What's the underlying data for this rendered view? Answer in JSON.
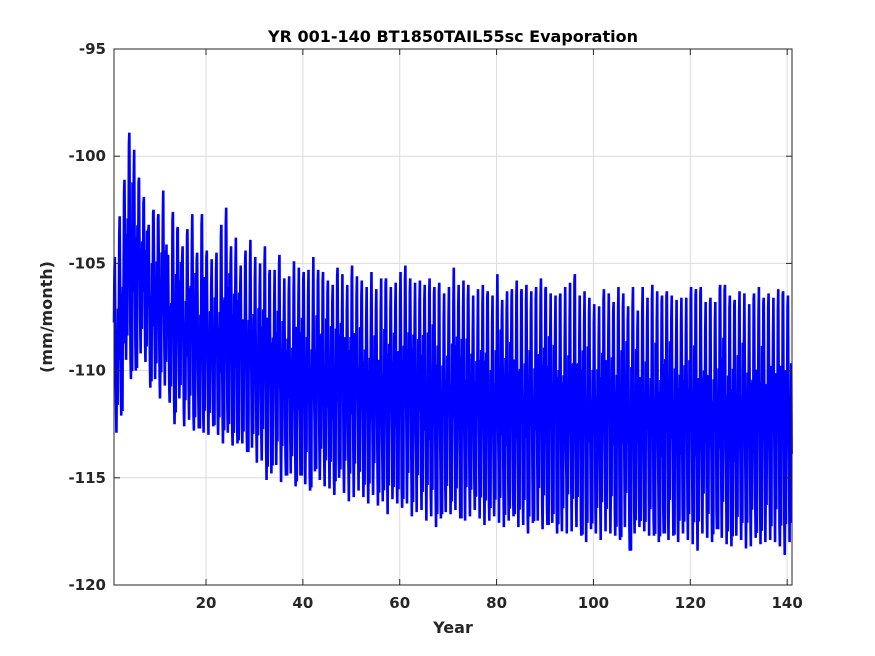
{
  "chart_data": {
    "type": "line",
    "title": "YR 001-140 BT1850TAIL55sc Evaporation",
    "xlabel": "Year",
    "ylabel": "(mm/month)",
    "xlim": [
      1,
      141
    ],
    "ylim": [
      -120,
      -95
    ],
    "xticks": [
      20,
      40,
      60,
      80,
      100,
      120,
      140
    ],
    "yticks": [
      -95,
      -100,
      -105,
      -110,
      -115,
      -120
    ],
    "grid": true,
    "series": [
      {
        "color": "#0000ff",
        "sampling": "monthly",
        "annual_max": [
          -104.7,
          -102.8,
          -101.1,
          -98.9,
          -99.7,
          -101.0,
          -101.9,
          -103.2,
          -102.5,
          -102.7,
          -101.6,
          -104.6,
          -102.6,
          -103.3,
          -104.2,
          -103.4,
          -102.7,
          -104.5,
          -102.7,
          -104.4,
          -104.8,
          -104.5,
          -103.2,
          -102.4,
          -104.2,
          -103.8,
          -105.1,
          -104.4,
          -103.9,
          -104.7,
          -105.0,
          -104.2,
          -105.3,
          -105.3,
          -104.6,
          -105.7,
          -105.6,
          -104.9,
          -105.2,
          -105.4,
          -105.3,
          -104.7,
          -105.3,
          -105.4,
          -105.8,
          -106.0,
          -105.2,
          -105.5,
          -106.0,
          -105.1,
          -105.6,
          -105.8,
          -106.1,
          -105.4,
          -106.2,
          -105.7,
          -105.7,
          -106.1,
          -105.9,
          -105.4,
          -105.1,
          -105.7,
          -105.9,
          -105.8,
          -106.0,
          -105.7,
          -106.1,
          -105.9,
          -106.4,
          -106.1,
          -105.2,
          -106.0,
          -105.8,
          -106.0,
          -106.5,
          -106.2,
          -106.0,
          -106.3,
          -106.5,
          -105.5,
          -106.7,
          -106.3,
          -106.2,
          -105.8,
          -106.2,
          -106.0,
          -106.3,
          -106.1,
          -105.7,
          -106.1,
          -106.4,
          -106.5,
          -106.4,
          -106.1,
          -105.9,
          -105.5,
          -106.5,
          -106.3,
          -106.6,
          -106.9,
          -107.0,
          -106.2,
          -106.4,
          -106.8,
          -106.1,
          -106.4,
          -107.0,
          -106.1,
          -107.2,
          -106.1,
          -106.6,
          -106.0,
          -106.3,
          -106.5,
          -106.3,
          -106.5,
          -106.7,
          -106.6,
          -106.6,
          -106.1,
          -106.2,
          -106.1,
          -106.8,
          -106.6,
          -106.8,
          -106.0,
          -106.0,
          -106.5,
          -106.7,
          -106.3,
          -106.4,
          -106.9,
          -106.4,
          -106.1,
          -106.6,
          -106.4,
          -106.6,
          -106.2,
          -106.3,
          -106.5
        ],
        "annual_min": [
          -112.9,
          -112.1,
          -109.5,
          -110.4,
          -110.0,
          -109.2,
          -109.6,
          -110.8,
          -110.4,
          -111.3,
          -110.7,
          -111.5,
          -112.5,
          -111.3,
          -112.6,
          -112.3,
          -112.8,
          -112.7,
          -112.9,
          -113.0,
          -112.6,
          -113.0,
          -113.4,
          -112.9,
          -113.5,
          -113.4,
          -113.4,
          -113.8,
          -113.6,
          -114.3,
          -114.2,
          -115.1,
          -114.8,
          -114.4,
          -115.2,
          -114.9,
          -114.8,
          -115.4,
          -114.9,
          -115.3,
          -115.6,
          -114.7,
          -115.1,
          -115.4,
          -115.5,
          -115.8,
          -115.0,
          -115.7,
          -116.1,
          -115.9,
          -115.6,
          -115.9,
          -116.2,
          -115.8,
          -116.3,
          -116.1,
          -116.7,
          -116.0,
          -116.2,
          -116.4,
          -116.2,
          -116.8,
          -116.6,
          -116.5,
          -117.0,
          -116.8,
          -117.3,
          -116.9,
          -116.6,
          -116.7,
          -116.5,
          -116.9,
          -117.0,
          -116.8,
          -116.5,
          -116.9,
          -117.2,
          -117.0,
          -116.8,
          -117.1,
          -117.3,
          -117.0,
          -116.8,
          -117.3,
          -117.2,
          -117.6,
          -117.1,
          -117.0,
          -117.4,
          -117.2,
          -117.1,
          -117.6,
          -117.5,
          -117.6,
          -117.5,
          -117.3,
          -117.7,
          -118.0,
          -117.4,
          -117.6,
          -117.9,
          -117.5,
          -117.6,
          -117.7,
          -117.9,
          -117.3,
          -118.4,
          -117.6,
          -117.3,
          -117.5,
          -117.7,
          -117.7,
          -118.0,
          -117.6,
          -117.9,
          -117.7,
          -118.0,
          -117.6,
          -117.9,
          -118.1,
          -118.4,
          -117.6,
          -117.8,
          -118.0,
          -117.4,
          -117.8,
          -118.1,
          -118.2,
          -117.7,
          -117.9,
          -118.3,
          -118.2,
          -117.8,
          -118.1,
          -118.0,
          -117.9,
          -118.0,
          -118.2,
          -118.6,
          -118.0
        ]
      }
    ]
  }
}
